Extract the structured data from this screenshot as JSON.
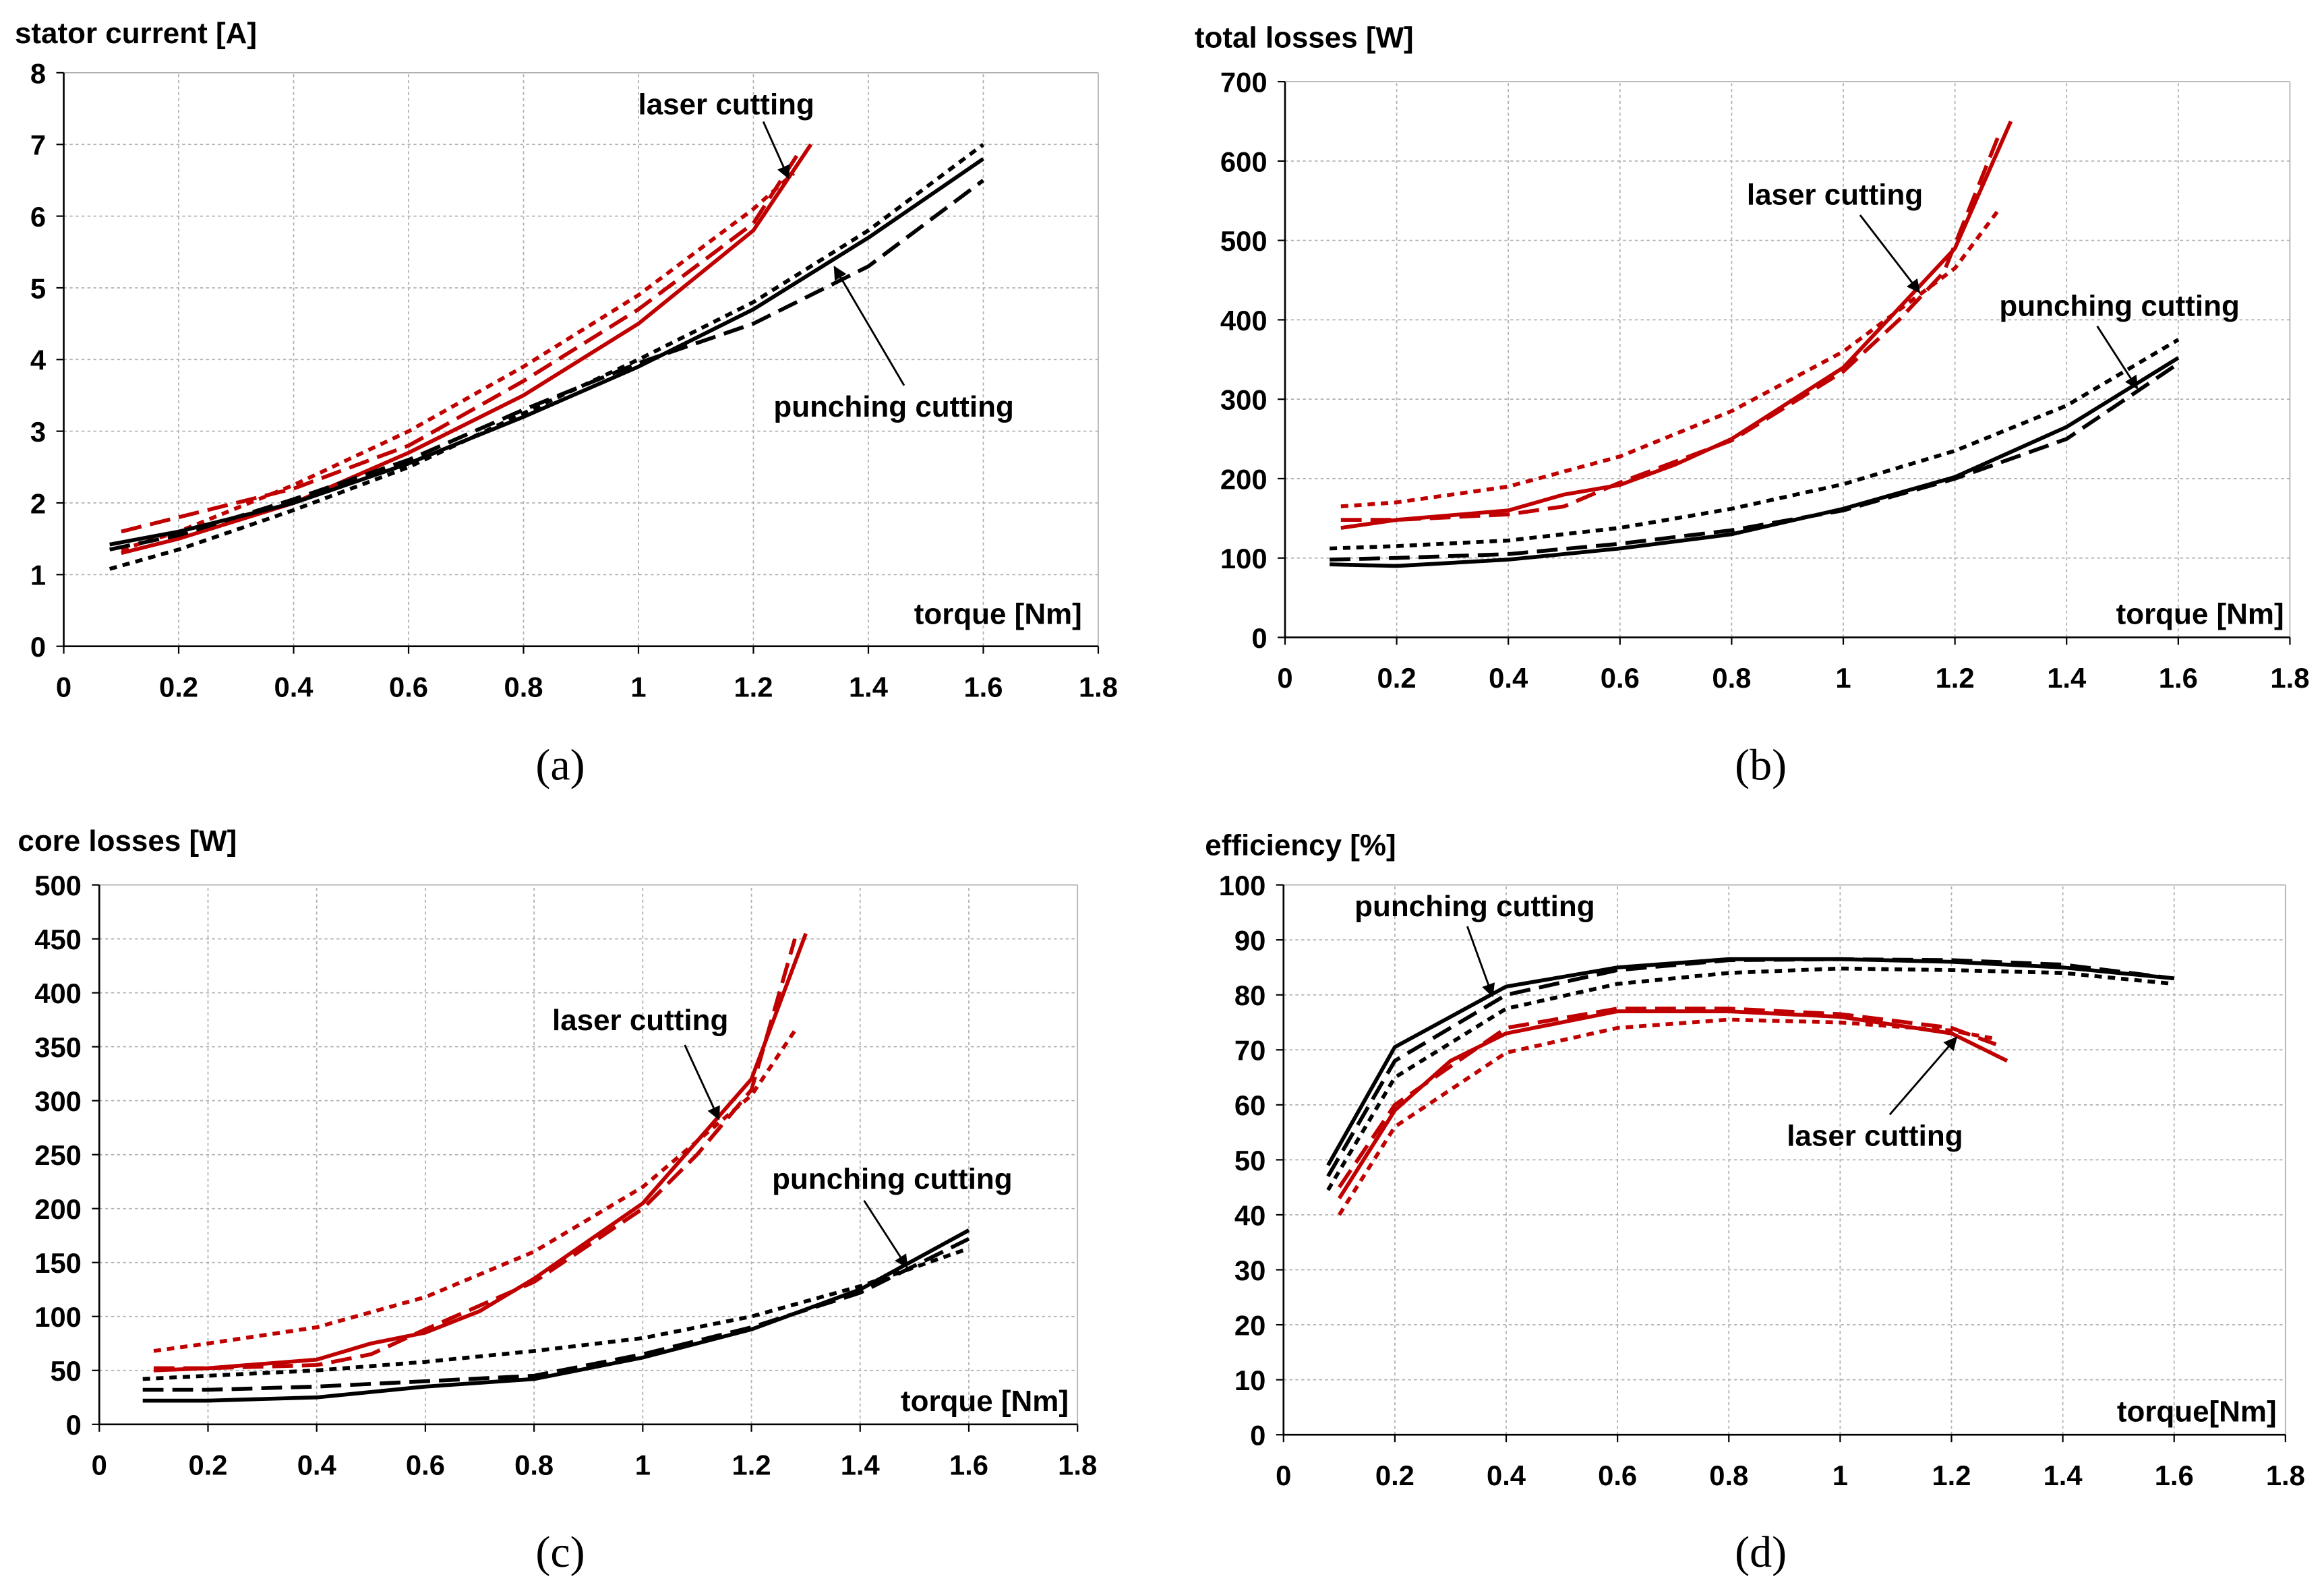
{
  "colors": {
    "laser": "#c00000",
    "punching": "#000000",
    "grid": "#b0b0b0"
  },
  "chart_data": [
    {
      "type": "line",
      "panel": "(a)",
      "ylabel": "stator current [A]",
      "xlabel": "torque [Nm]",
      "xlim": [
        0,
        1.8
      ],
      "ylim": [
        0,
        8
      ],
      "xstep": 0.2,
      "ystep": 1,
      "grid": true,
      "annotations": [
        "laser cutting",
        "punching cutting"
      ],
      "series": [
        {
          "group": "laser",
          "style": "solid",
          "points": [
            [
              0.1,
              1.3
            ],
            [
              0.2,
              1.5
            ],
            [
              0.4,
              2.0
            ],
            [
              0.6,
              2.7
            ],
            [
              0.8,
              3.5
            ],
            [
              1.0,
              4.5
            ],
            [
              1.2,
              5.8
            ],
            [
              1.3,
              7.0
            ]
          ]
        },
        {
          "group": "laser",
          "style": "long-dash",
          "points": [
            [
              0.1,
              1.6
            ],
            [
              0.2,
              1.8
            ],
            [
              0.4,
              2.2
            ],
            [
              0.6,
              2.8
            ],
            [
              0.8,
              3.7
            ],
            [
              1.0,
              4.7
            ],
            [
              1.2,
              5.9
            ],
            [
              1.28,
              6.9
            ]
          ]
        },
        {
          "group": "laser",
          "style": "short-dash",
          "points": [
            [
              0.1,
              1.35
            ],
            [
              0.2,
              1.6
            ],
            [
              0.4,
              2.25
            ],
            [
              0.6,
              3.0
            ],
            [
              0.8,
              3.9
            ],
            [
              1.0,
              4.9
            ],
            [
              1.2,
              6.1
            ],
            [
              1.27,
              6.6
            ]
          ]
        },
        {
          "group": "punching",
          "style": "solid",
          "points": [
            [
              0.08,
              1.42
            ],
            [
              0.2,
              1.6
            ],
            [
              0.4,
              2.0
            ],
            [
              0.6,
              2.55
            ],
            [
              0.8,
              3.2
            ],
            [
              1.0,
              3.9
            ],
            [
              1.2,
              4.7
            ],
            [
              1.4,
              5.7
            ],
            [
              1.6,
              6.8
            ]
          ]
        },
        {
          "group": "punching",
          "style": "long-dash",
          "points": [
            [
              0.08,
              1.35
            ],
            [
              0.2,
              1.55
            ],
            [
              0.4,
              2.05
            ],
            [
              0.6,
              2.6
            ],
            [
              0.8,
              3.3
            ],
            [
              1.0,
              3.95
            ],
            [
              1.2,
              4.5
            ],
            [
              1.4,
              5.3
            ],
            [
              1.6,
              6.5
            ]
          ]
        },
        {
          "group": "punching",
          "style": "short-dash",
          "points": [
            [
              0.08,
              1.08
            ],
            [
              0.2,
              1.35
            ],
            [
              0.4,
              1.9
            ],
            [
              0.6,
              2.5
            ],
            [
              0.8,
              3.25
            ],
            [
              1.0,
              4.0
            ],
            [
              1.2,
              4.8
            ],
            [
              1.4,
              5.8
            ],
            [
              1.6,
              7.0
            ]
          ]
        }
      ]
    },
    {
      "type": "line",
      "panel": "(b)",
      "ylabel": "total losses [W]",
      "xlabel": "torque [Nm]",
      "xlim": [
        0,
        1.8
      ],
      "ylim": [
        0,
        700
      ],
      "xstep": 0.2,
      "ystep": 100,
      "grid": true,
      "annotations": [
        "laser cutting",
        "punching cutting"
      ],
      "series": [
        {
          "group": "laser",
          "style": "solid",
          "points": [
            [
              0.1,
              138
            ],
            [
              0.2,
              148
            ],
            [
              0.4,
              160
            ],
            [
              0.5,
              180
            ],
            [
              0.6,
              192
            ],
            [
              0.7,
              218
            ],
            [
              0.8,
              250
            ],
            [
              1.0,
              340
            ],
            [
              1.2,
              490
            ],
            [
              1.3,
              650
            ]
          ]
        },
        {
          "group": "laser",
          "style": "long-dash",
          "points": [
            [
              0.1,
              148
            ],
            [
              0.2,
              148
            ],
            [
              0.4,
              155
            ],
            [
              0.5,
              165
            ],
            [
              0.6,
              195
            ],
            [
              0.8,
              248
            ],
            [
              1.0,
              335
            ],
            [
              1.1,
              400
            ],
            [
              1.18,
              460
            ],
            [
              1.28,
              635
            ]
          ]
        },
        {
          "group": "laser",
          "style": "short-dash",
          "points": [
            [
              0.1,
              165
            ],
            [
              0.2,
              170
            ],
            [
              0.4,
              190
            ],
            [
              0.6,
              228
            ],
            [
              0.8,
              285
            ],
            [
              1.0,
              360
            ],
            [
              1.2,
              465
            ],
            [
              1.28,
              540
            ]
          ]
        },
        {
          "group": "punching",
          "style": "solid",
          "points": [
            [
              0.08,
              92
            ],
            [
              0.2,
              90
            ],
            [
              0.4,
              98
            ],
            [
              0.6,
              112
            ],
            [
              0.8,
              130
            ],
            [
              1.0,
              162
            ],
            [
              1.2,
              202
            ],
            [
              1.4,
              265
            ],
            [
              1.6,
              352
            ]
          ]
        },
        {
          "group": "punching",
          "style": "long-dash",
          "points": [
            [
              0.08,
              98
            ],
            [
              0.2,
              100
            ],
            [
              0.4,
              105
            ],
            [
              0.6,
              118
            ],
            [
              0.8,
              135
            ],
            [
              1.0,
              160
            ],
            [
              1.2,
              200
            ],
            [
              1.4,
              250
            ],
            [
              1.6,
              345
            ]
          ]
        },
        {
          "group": "punching",
          "style": "short-dash",
          "points": [
            [
              0.08,
              112
            ],
            [
              0.2,
              115
            ],
            [
              0.4,
              122
            ],
            [
              0.6,
              138
            ],
            [
              0.8,
              162
            ],
            [
              1.0,
              193
            ],
            [
              1.2,
              235
            ],
            [
              1.4,
              292
            ],
            [
              1.6,
              375
            ]
          ]
        }
      ]
    },
    {
      "type": "line",
      "panel": "(c)",
      "ylabel": "core losses [W]",
      "xlabel": "torque [Nm]",
      "xlim": [
        0,
        1.8
      ],
      "ylim": [
        0,
        500
      ],
      "xstep": 0.2,
      "ystep": 50,
      "grid": true,
      "annotations": [
        "laser cutting",
        "punching cutting"
      ],
      "series": [
        {
          "group": "laser",
          "style": "solid",
          "points": [
            [
              0.1,
              50
            ],
            [
              0.2,
              52
            ],
            [
              0.4,
              60
            ],
            [
              0.5,
              75
            ],
            [
              0.6,
              85
            ],
            [
              0.7,
              105
            ],
            [
              0.8,
              135
            ],
            [
              1.0,
              205
            ],
            [
              1.2,
              320
            ],
            [
              1.3,
              455
            ]
          ]
        },
        {
          "group": "laser",
          "style": "long-dash",
          "points": [
            [
              0.1,
              52
            ],
            [
              0.2,
              52
            ],
            [
              0.4,
              55
            ],
            [
              0.5,
              65
            ],
            [
              0.6,
              88
            ],
            [
              0.8,
              132
            ],
            [
              1.0,
              200
            ],
            [
              1.1,
              250
            ],
            [
              1.2,
              310
            ],
            [
              1.28,
              450
            ]
          ]
        },
        {
          "group": "laser",
          "style": "short-dash",
          "points": [
            [
              0.1,
              68
            ],
            [
              0.2,
              75
            ],
            [
              0.4,
              90
            ],
            [
              0.6,
              118
            ],
            [
              0.8,
              160
            ],
            [
              1.0,
              220
            ],
            [
              1.2,
              305
            ],
            [
              1.28,
              365
            ]
          ]
        },
        {
          "group": "punching",
          "style": "solid",
          "points": [
            [
              0.08,
              22
            ],
            [
              0.2,
              22
            ],
            [
              0.4,
              25
            ],
            [
              0.6,
              35
            ],
            [
              0.8,
              42
            ],
            [
              1.0,
              62
            ],
            [
              1.2,
              88
            ],
            [
              1.4,
              125
            ],
            [
              1.6,
              180
            ]
          ]
        },
        {
          "group": "punching",
          "style": "long-dash",
          "points": [
            [
              0.08,
              32
            ],
            [
              0.2,
              32
            ],
            [
              0.4,
              35
            ],
            [
              0.6,
              40
            ],
            [
              0.8,
              45
            ],
            [
              1.0,
              65
            ],
            [
              1.2,
              90
            ],
            [
              1.4,
              122
            ],
            [
              1.6,
              172
            ]
          ]
        },
        {
          "group": "punching",
          "style": "short-dash",
          "points": [
            [
              0.08,
              42
            ],
            [
              0.2,
              45
            ],
            [
              0.4,
              50
            ],
            [
              0.6,
              58
            ],
            [
              0.8,
              68
            ],
            [
              1.0,
              80
            ],
            [
              1.2,
              100
            ],
            [
              1.4,
              128
            ],
            [
              1.6,
              163
            ]
          ]
        }
      ]
    },
    {
      "type": "line",
      "panel": "(d)",
      "ylabel": "efficiency [%]",
      "xlabel": "torque[Nm]",
      "xlim": [
        0,
        1.8
      ],
      "ylim": [
        0,
        100
      ],
      "xstep": 0.2,
      "ystep": 10,
      "grid": true,
      "annotations": [
        "punching cutting",
        "laser cutting"
      ],
      "series": [
        {
          "group": "laser",
          "style": "solid",
          "points": [
            [
              0.1,
              43
            ],
            [
              0.2,
              59
            ],
            [
              0.3,
              68
            ],
            [
              0.4,
              73
            ],
            [
              0.6,
              77
            ],
            [
              0.8,
              77
            ],
            [
              1.0,
              76
            ],
            [
              1.2,
              73
            ],
            [
              1.3,
              68
            ]
          ]
        },
        {
          "group": "laser",
          "style": "long-dash",
          "points": [
            [
              0.1,
              45
            ],
            [
              0.2,
              60
            ],
            [
              0.4,
              74
            ],
            [
              0.6,
              77.5
            ],
            [
              0.8,
              77.5
            ],
            [
              1.0,
              76.5
            ],
            [
              1.2,
              74
            ],
            [
              1.28,
              71
            ]
          ]
        },
        {
          "group": "laser",
          "style": "short-dash",
          "points": [
            [
              0.1,
              40
            ],
            [
              0.2,
              56
            ],
            [
              0.4,
              69.5
            ],
            [
              0.6,
              74
            ],
            [
              0.8,
              75.5
            ],
            [
              1.0,
              75
            ],
            [
              1.2,
              73.5
            ],
            [
              1.28,
              72
            ]
          ]
        },
        {
          "group": "punching",
          "style": "solid",
          "points": [
            [
              0.08,
              49
            ],
            [
              0.2,
              70.5
            ],
            [
              0.4,
              81.5
            ],
            [
              0.6,
              85
            ],
            [
              0.8,
              86.5
            ],
            [
              1.0,
              86.5
            ],
            [
              1.2,
              86
            ],
            [
              1.4,
              85
            ],
            [
              1.6,
              83
            ]
          ]
        },
        {
          "group": "punching",
          "style": "long-dash",
          "points": [
            [
              0.08,
              47
            ],
            [
              0.2,
              68
            ],
            [
              0.4,
              80
            ],
            [
              0.6,
              84.5
            ],
            [
              0.8,
              86.3
            ],
            [
              1.0,
              86.5
            ],
            [
              1.2,
              86.3
            ],
            [
              1.4,
              85.5
            ],
            [
              1.6,
              83
            ]
          ]
        },
        {
          "group": "punching",
          "style": "short-dash",
          "points": [
            [
              0.08,
              44.5
            ],
            [
              0.2,
              65
            ],
            [
              0.4,
              77.5
            ],
            [
              0.6,
              82
            ],
            [
              0.8,
              84
            ],
            [
              1.0,
              84.8
            ],
            [
              1.2,
              84.5
            ],
            [
              1.4,
              84
            ],
            [
              1.6,
              82
            ]
          ]
        }
      ]
    }
  ]
}
